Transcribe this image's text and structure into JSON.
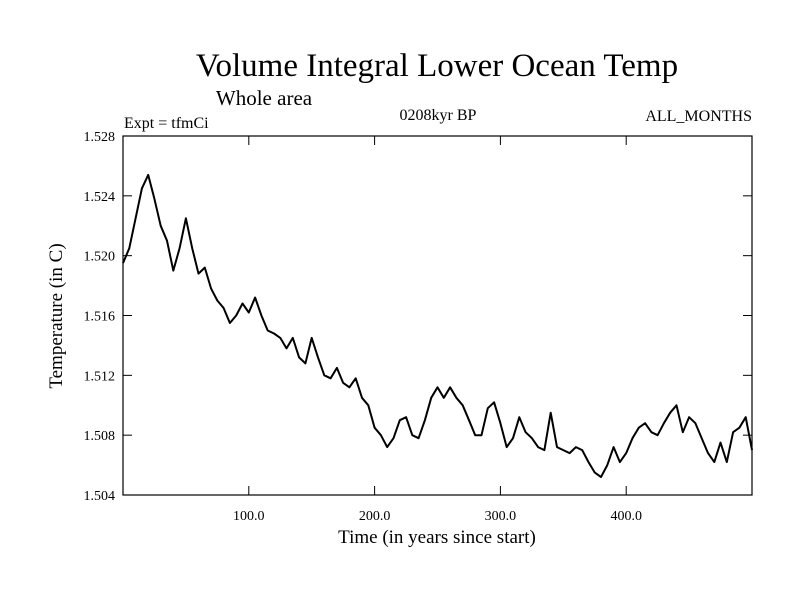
{
  "chart_data": {
    "type": "line",
    "title": "Volume Integral Lower Ocean Temp",
    "subtitle": "Whole area",
    "expt_label": "Expt = tfmCi",
    "period_label": "0208kyr BP",
    "months_label": "ALL_MONTHS",
    "xlabel": "Time (in years since start)",
    "ylabel": "Temperature (in C)",
    "xlim": [
      0,
      500
    ],
    "ylim": [
      1.504,
      1.528
    ],
    "x_ticks": [
      100,
      200,
      300,
      400
    ],
    "x_tick_labels": [
      "100.0",
      "200.0",
      "300.0",
      "400.0"
    ],
    "y_ticks": [
      1.504,
      1.508,
      1.512,
      1.516,
      1.52,
      1.524,
      1.528
    ],
    "y_tick_labels": [
      "1.504",
      "1.508",
      "1.512",
      "1.516",
      "1.520",
      "1.524",
      "1.528"
    ],
    "grid": false,
    "line_color": "#000000",
    "series": [
      {
        "x": [
          0,
          5,
          10,
          15,
          20,
          25,
          30,
          35,
          40,
          45,
          50,
          55,
          60,
          65,
          70,
          75,
          80,
          85,
          90,
          95,
          100,
          105,
          110,
          115,
          120,
          125,
          130,
          135,
          140,
          145,
          150,
          155,
          160,
          165,
          170,
          175,
          180,
          185,
          190,
          195,
          200,
          205,
          210,
          215,
          220,
          225,
          230,
          235,
          240,
          245,
          250,
          255,
          260,
          265,
          270,
          275,
          280,
          285,
          290,
          295,
          300,
          305,
          310,
          315,
          320,
          325,
          330,
          335,
          340,
          345,
          350,
          355,
          360,
          365,
          370,
          375,
          380,
          385,
          390,
          395,
          400,
          405,
          410,
          415,
          420,
          425,
          430,
          435,
          440,
          445,
          450,
          455,
          460,
          465,
          470,
          475,
          480,
          485,
          490,
          495,
          500
        ],
        "values": [
          1.5195,
          1.5205,
          1.5225,
          1.5245,
          1.5254,
          1.5238,
          1.522,
          1.521,
          1.519,
          1.5205,
          1.5225,
          1.5205,
          1.5188,
          1.5192,
          1.5178,
          1.517,
          1.5165,
          1.5155,
          1.516,
          1.5168,
          1.5162,
          1.5172,
          1.516,
          1.515,
          1.5148,
          1.5145,
          1.5138,
          1.5145,
          1.5132,
          1.5128,
          1.5145,
          1.5132,
          1.512,
          1.5118,
          1.5125,
          1.5115,
          1.5112,
          1.5118,
          1.5105,
          1.51,
          1.5085,
          1.508,
          1.5072,
          1.5078,
          1.509,
          1.5092,
          1.508,
          1.5078,
          1.509,
          1.5105,
          1.5112,
          1.5105,
          1.5112,
          1.5105,
          1.51,
          1.509,
          1.508,
          1.508,
          1.5098,
          1.5102,
          1.5088,
          1.5072,
          1.5078,
          1.5092,
          1.5082,
          1.5078,
          1.5072,
          1.507,
          1.5095,
          1.5072,
          1.507,
          1.5068,
          1.5072,
          1.507,
          1.5062,
          1.5055,
          1.5052,
          1.506,
          1.5072,
          1.5062,
          1.5068,
          1.5078,
          1.5085,
          1.5088,
          1.5082,
          1.508,
          1.5088,
          1.5095,
          1.51,
          1.5082,
          1.5092,
          1.5088,
          1.5078,
          1.5068,
          1.5062,
          1.5075,
          1.5062,
          1.5082,
          1.5085,
          1.5092,
          1.507
        ]
      }
    ]
  }
}
